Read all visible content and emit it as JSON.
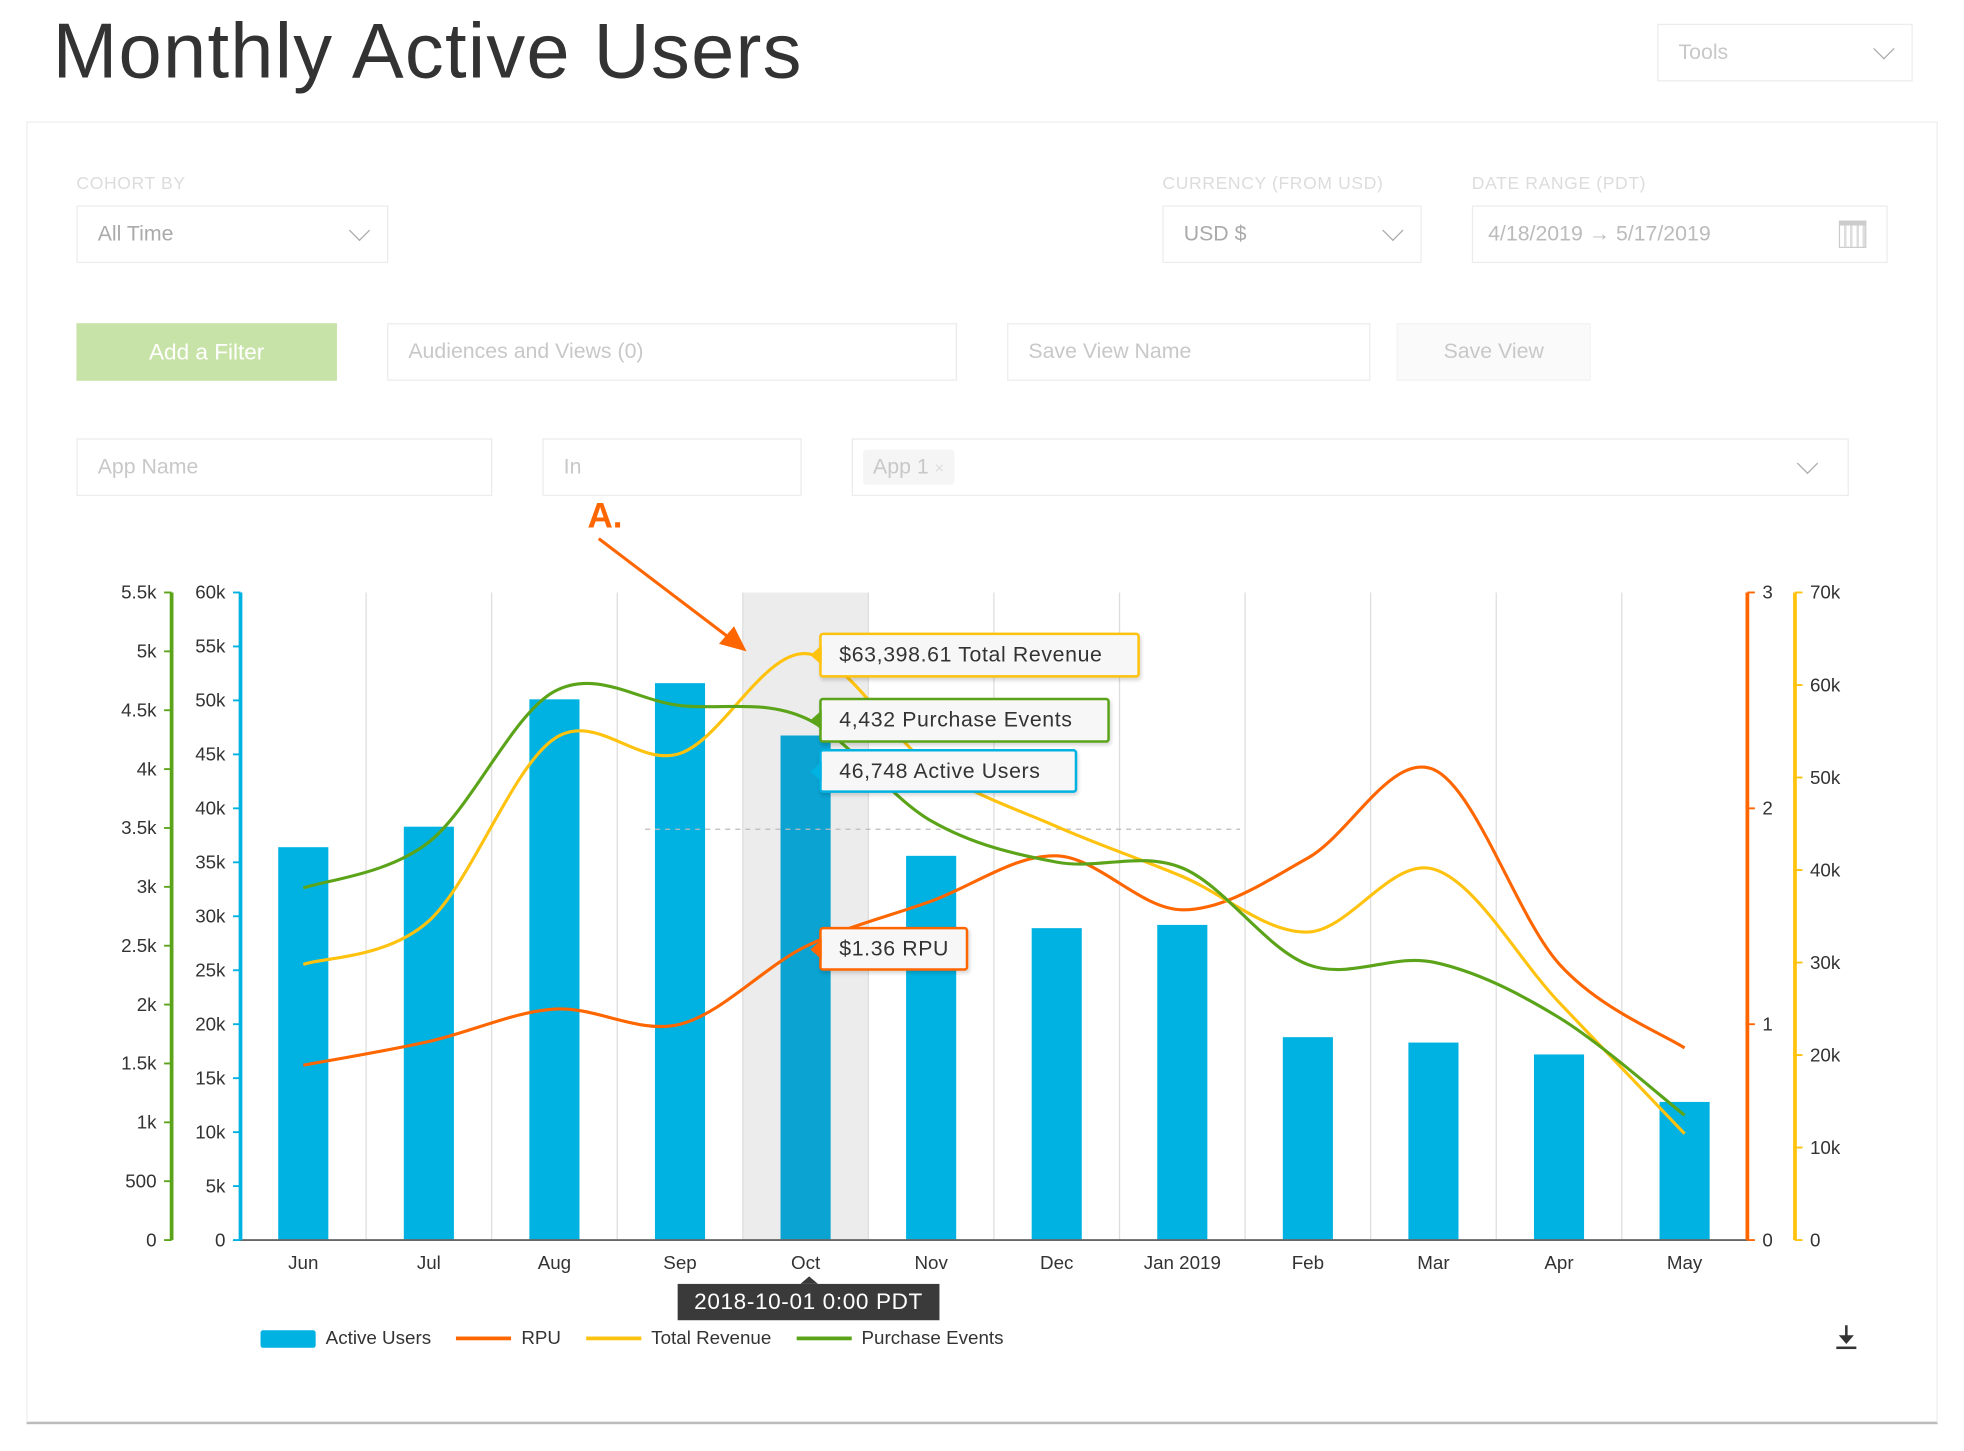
{
  "header": {
    "title": "Monthly Active Users",
    "tools_label": "Tools"
  },
  "filters": {
    "cohort_label": "COHORT BY",
    "cohort_value": "All Time",
    "currency_label": "CURRENCY (FROM USD)",
    "currency_value": "USD $",
    "date_label": "DATE RANGE (PDT)",
    "date_value": "4/18/2019 → 5/17/2019",
    "add_filter": "Add a Filter",
    "audiences": "Audiences and Views (0)",
    "save_view_placeholder": "Save View Name",
    "save_view": "Save View",
    "app_name": "App Name",
    "operator": "In",
    "chip": "App 1",
    "chip_remove": "×"
  },
  "annotation": {
    "label": "A.",
    "color": "#ff6600"
  },
  "colors": {
    "active_users": "#00b2e2",
    "active_users_highlight": "#0aa3d2",
    "rpu": "#ff6600",
    "total_revenue": "#ffc20e",
    "purchase_events": "#5ba41a"
  },
  "chart_data": {
    "type": "bar+line",
    "categories": [
      "Jun",
      "Jul",
      "Aug",
      "Sep",
      "Oct",
      "Nov",
      "Dec",
      "Jan 2019",
      "Feb",
      "Mar",
      "Apr",
      "May"
    ],
    "series": [
      {
        "name": "Active Users",
        "type": "bar",
        "axis": "left-inner",
        "values": [
          36400,
          38300,
          50100,
          51600,
          46748,
          35600,
          28900,
          29200,
          18800,
          18300,
          17200,
          12800
        ]
      },
      {
        "name": "RPU",
        "type": "line",
        "axis": "right-inner",
        "values": [
          0.81,
          0.92,
          1.07,
          1.0,
          1.36,
          1.57,
          1.78,
          1.53,
          1.77,
          2.18,
          1.28,
          0.89
        ]
      },
      {
        "name": "Total Revenue",
        "type": "line",
        "axis": "right-outer",
        "values": [
          29800,
          34500,
          54200,
          52600,
          63398.61,
          51200,
          44700,
          39300,
          33300,
          40100,
          25700,
          11500
        ]
      },
      {
        "name": "Purchase Events",
        "type": "line",
        "axis": "left-outer",
        "values": [
          2990,
          3380,
          4660,
          4540,
          4432,
          3560,
          3210,
          3160,
          2340,
          2360,
          1890,
          1060
        ]
      }
    ],
    "axes": {
      "left_outer": {
        "range": [
          0,
          5500
        ],
        "ticks": [
          "0",
          "500",
          "1k",
          "1.5k",
          "2k",
          "2.5k",
          "3k",
          "3.5k",
          "4k",
          "4.5k",
          "5k",
          "5.5k"
        ]
      },
      "left_inner": {
        "range": [
          0,
          60000
        ],
        "ticks": [
          "0",
          "5k",
          "10k",
          "15k",
          "20k",
          "25k",
          "30k",
          "35k",
          "40k",
          "45k",
          "50k",
          "55k",
          "60k"
        ]
      },
      "right_inner": {
        "range": [
          0,
          3
        ],
        "ticks": [
          "0",
          "1",
          "2",
          "3"
        ]
      },
      "right_outer": {
        "range": [
          0,
          70000
        ],
        "ticks": [
          "0",
          "10k",
          "20k",
          "30k",
          "40k",
          "50k",
          "60k",
          "70k"
        ]
      }
    },
    "grid": "vertical",
    "legend": "bottom-left",
    "highlight_index": 4,
    "tooltips": {
      "revenue": "$63,398.61 Total Revenue",
      "purchases": "4,432 Purchase Events",
      "users": "46,748 Active Users",
      "rpu": "$1.36 RPU",
      "date": "2018-10-01 0:00 PDT"
    }
  }
}
